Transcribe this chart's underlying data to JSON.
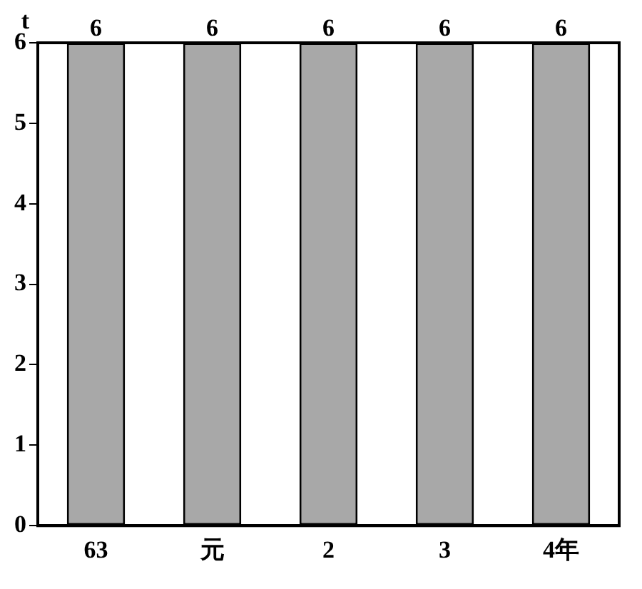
{
  "chart_data": {
    "type": "bar",
    "ylabel": "t",
    "categories": [
      "63",
      "元",
      "2",
      "3",
      "4年"
    ],
    "values": [
      6,
      6,
      6,
      6,
      6
    ],
    "color": "#a8a8a8",
    "ylim": [
      0,
      6
    ],
    "yticks": [
      0,
      1,
      2,
      3,
      4,
      5,
      6
    ],
    "grid": false,
    "data_labels": true,
    "legend": false
  }
}
